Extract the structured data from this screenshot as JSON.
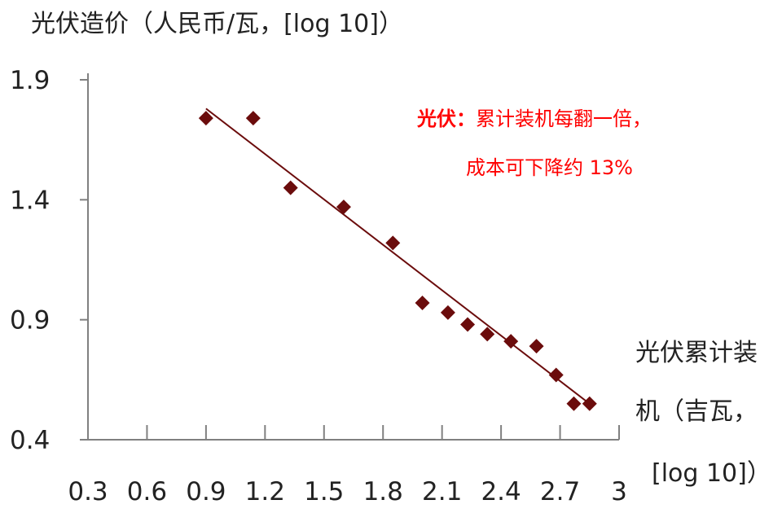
{
  "chart_data": {
    "type": "scatter",
    "ylabel": "光伏造价（人民币/瓦，[log 10]）",
    "xlabel_lines": [
      "光伏累计装",
      "机（吉瓦，",
      "[log 10]）"
    ],
    "xlim": [
      0.3,
      3.0
    ],
    "ylim": [
      0.4,
      1.9
    ],
    "x_ticks": [
      0.3,
      0.6,
      0.9,
      1.2,
      1.5,
      1.8,
      2.1,
      2.4,
      2.7,
      3.0
    ],
    "x_tick_labels": [
      "0.3",
      "0.6",
      "0.9",
      "1.2",
      "1.5",
      "1.8",
      "2.1",
      "2.4",
      "2.7",
      "3"
    ],
    "y_ticks": [
      0.4,
      0.9,
      1.4,
      1.9
    ],
    "y_tick_labels": [
      "0.4",
      "0.9",
      "1.4",
      "1.9"
    ],
    "points": [
      {
        "x": 0.9,
        "y": 1.74
      },
      {
        "x": 1.14,
        "y": 1.74
      },
      {
        "x": 1.33,
        "y": 1.45
      },
      {
        "x": 1.6,
        "y": 1.37
      },
      {
        "x": 1.85,
        "y": 1.22
      },
      {
        "x": 2.0,
        "y": 0.97
      },
      {
        "x": 2.13,
        "y": 0.93
      },
      {
        "x": 2.23,
        "y": 0.88
      },
      {
        "x": 2.33,
        "y": 0.84
      },
      {
        "x": 2.45,
        "y": 0.81
      },
      {
        "x": 2.58,
        "y": 0.79
      },
      {
        "x": 2.68,
        "y": 0.67
      },
      {
        "x": 2.77,
        "y": 0.55
      },
      {
        "x": 2.85,
        "y": 0.55
      }
    ],
    "trendline": {
      "x": [
        0.9,
        2.85
      ],
      "y": [
        1.78,
        0.55
      ]
    },
    "marker_color": "#6b0c0c",
    "line_color": "#6b0c0c",
    "axis_color": "#808080",
    "annotation": {
      "bold": "光伏：",
      "line1": "累计装机每翻一倍，",
      "line2": "成本可下降约 13%",
      "color": "#ff0000"
    }
  }
}
